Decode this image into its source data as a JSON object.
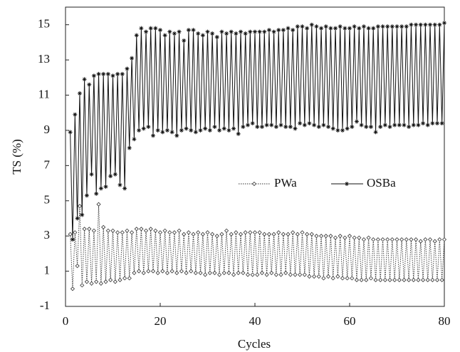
{
  "chart_data": {
    "type": "line",
    "ylabel": "TS (%)",
    "xlabel": "Cycles",
    "xlim": [
      0,
      80
    ],
    "xticks": [
      0,
      20,
      40,
      60,
      80
    ],
    "ylim": [
      -1,
      16
    ],
    "yticks": [
      -1,
      1,
      3,
      5,
      7,
      9,
      11,
      13,
      15
    ],
    "legend": "center-right",
    "x": [
      1,
      1.5,
      2,
      2.5,
      3,
      3.5,
      4,
      4.5,
      5,
      5.5,
      6,
      6.5,
      7,
      7.5,
      8,
      8.5,
      9,
      9.5,
      10,
      10.5,
      11,
      11.5,
      12,
      12.5,
      13,
      13.5,
      14,
      14.5,
      15,
      15.5,
      16,
      16.5,
      17,
      17.5,
      18,
      18.5,
      19,
      19.5,
      20,
      20.5,
      21,
      21.5,
      22,
      22.5,
      23,
      23.5,
      24,
      24.5,
      25,
      25.5,
      26,
      26.5,
      27,
      27.5,
      28,
      28.5,
      29,
      29.5,
      30,
      30.5,
      31,
      31.5,
      32,
      32.5,
      33,
      33.5,
      34,
      34.5,
      35,
      35.5,
      36,
      36.5,
      37,
      37.5,
      38,
      38.5,
      39,
      39.5,
      40,
      40.5,
      41,
      41.5,
      42,
      42.5,
      43,
      43.5,
      44,
      44.5,
      45,
      45.5,
      46,
      46.5,
      47,
      47.5,
      48,
      48.5,
      49,
      49.5,
      50,
      50.5,
      51,
      51.5,
      52,
      52.5,
      53,
      53.5,
      54,
      54.5,
      55,
      55.5,
      56,
      56.5,
      57,
      57.5,
      58,
      58.5,
      59,
      59.5,
      60,
      60.5,
      61,
      61.5,
      62,
      62.5,
      63,
      63.5,
      64,
      64.5,
      65,
      65.5,
      66,
      66.5,
      67,
      67.5,
      68,
      68.5,
      69,
      69.5,
      70,
      70.5,
      71,
      71.5,
      72,
      72.5,
      73,
      73.5,
      74,
      74.5,
      75,
      75.5,
      76,
      76.5,
      77,
      77.5,
      78,
      78.5,
      79,
      79.5,
      80
    ],
    "series": [
      {
        "name": "PWa",
        "color": "#333333",
        "dash": "dotted",
        "marker": "diamond",
        "values": [
          3.1,
          0.0,
          3.2,
          1.3,
          4.7,
          0.2,
          3.4,
          0.4,
          3.4,
          0.3,
          3.3,
          0.4,
          4.8,
          0.3,
          3.5,
          0.4,
          3.3,
          0.5,
          3.3,
          0.4,
          3.2,
          0.5,
          3.2,
          0.6,
          3.3,
          0.6,
          3.2,
          0.9,
          3.4,
          1.0,
          3.4,
          0.9,
          3.3,
          1.0,
          3.4,
          1.0,
          3.3,
          0.9,
          3.2,
          1.0,
          3.3,
          0.9,
          3.2,
          1.0,
          3.2,
          0.9,
          3.3,
          1.0,
          3.1,
          0.9,
          3.2,
          1.0,
          3.1,
          0.9,
          3.2,
          0.9,
          3.1,
          0.8,
          3.2,
          0.9,
          3.1,
          0.9,
          3.0,
          0.8,
          3.1,
          0.9,
          3.3,
          0.9,
          3.1,
          0.8,
          3.2,
          0.9,
          3.1,
          0.9,
          3.2,
          0.8,
          3.2,
          0.8,
          3.2,
          0.8,
          3.2,
          0.9,
          3.1,
          0.8,
          3.1,
          0.9,
          3.1,
          0.8,
          3.2,
          0.8,
          3.1,
          0.9,
          3.1,
          0.8,
          3.2,
          0.8,
          3.1,
          0.8,
          3.2,
          0.8,
          3.1,
          0.7,
          3.1,
          0.7,
          3.0,
          0.7,
          3.0,
          0.6,
          3.0,
          0.7,
          3.0,
          0.6,
          2.9,
          0.7,
          3.0,
          0.6,
          2.9,
          0.6,
          3.0,
          0.6,
          2.9,
          0.5,
          2.9,
          0.5,
          2.8,
          0.5,
          2.9,
          0.6,
          2.8,
          0.5,
          2.8,
          0.5,
          2.8,
          0.5,
          2.8,
          0.5,
          2.8,
          0.5,
          2.8,
          0.5,
          2.8,
          0.5,
          2.8,
          0.5,
          2.8,
          0.5,
          2.8,
          0.5,
          2.7,
          0.5,
          2.8,
          0.5,
          2.8,
          0.5,
          2.7,
          0.5,
          2.8,
          0.5,
          2.8
        ]
      },
      {
        "name": "OSBa",
        "color": "#111111",
        "dash": "solid",
        "marker": "asterisk",
        "values": [
          8.9,
          2.8,
          9.9,
          4.0,
          11.1,
          4.2,
          11.9,
          5.3,
          11.6,
          6.5,
          12.1,
          5.4,
          12.2,
          5.7,
          12.2,
          5.8,
          12.2,
          6.4,
          12.1,
          6.5,
          12.2,
          5.9,
          12.2,
          5.7,
          12.5,
          8.0,
          13.1,
          8.5,
          14.4,
          9.0,
          14.8,
          9.1,
          14.6,
          9.2,
          14.8,
          8.7,
          14.8,
          9.0,
          14.7,
          8.9,
          14.4,
          9.0,
          14.6,
          8.9,
          14.5,
          8.7,
          14.6,
          9.0,
          14.1,
          9.1,
          14.7,
          9.0,
          14.7,
          8.9,
          14.5,
          9.0,
          14.4,
          9.1,
          14.6,
          9.0,
          14.5,
          9.2,
          14.3,
          9.0,
          14.6,
          9.1,
          14.5,
          9.0,
          14.6,
          9.1,
          14.5,
          8.8,
          14.6,
          9.2,
          14.5,
          9.3,
          14.6,
          9.4,
          14.6,
          9.2,
          14.6,
          9.2,
          14.6,
          9.3,
          14.7,
          9.3,
          14.6,
          9.2,
          14.7,
          9.3,
          14.7,
          9.2,
          14.8,
          9.2,
          14.7,
          9.1,
          14.9,
          9.4,
          14.9,
          9.3,
          14.8,
          9.4,
          15.0,
          9.3,
          14.9,
          9.2,
          14.8,
          9.3,
          14.9,
          9.2,
          14.8,
          9.1,
          14.8,
          9.0,
          14.9,
          9.0,
          14.8,
          9.1,
          14.8,
          9.2,
          14.9,
          9.5,
          14.8,
          9.3,
          14.9,
          9.2,
          14.8,
          9.2,
          14.8,
          8.9,
          14.9,
          9.2,
          14.9,
          9.3,
          14.9,
          9.2,
          14.9,
          9.3,
          14.9,
          9.3,
          14.9,
          9.3,
          14.9,
          9.2,
          15.0,
          9.3,
          15.0,
          9.3,
          15.0,
          9.4,
          15.0,
          9.3,
          15.0,
          9.4,
          15.0,
          9.4,
          15.0,
          9.4,
          15.1
        ]
      }
    ]
  }
}
